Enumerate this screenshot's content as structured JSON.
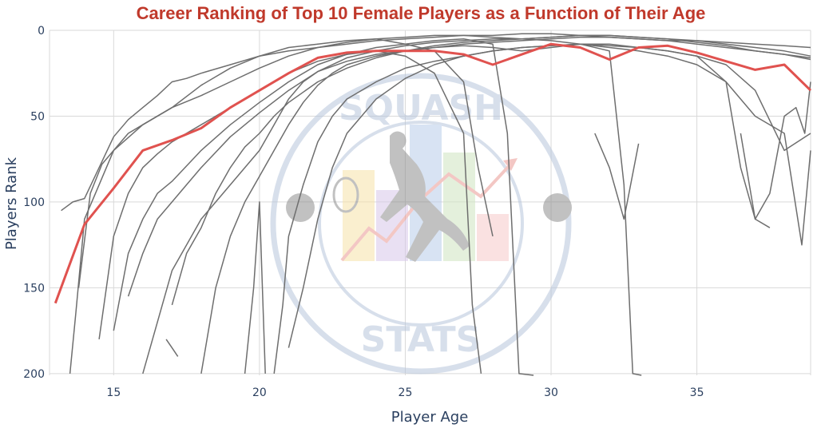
{
  "colors": {
    "title": "#c0392b",
    "player_line": "#6e6e6e",
    "average_line": "#e0524f",
    "grid": "#d9d9d9",
    "axis_text": "#2a3f5f",
    "watermark": "#b8c6dc"
  },
  "watermark": {
    "top_text": "SQUASH",
    "bottom_text": "STATS"
  },
  "chart_data": {
    "type": "line",
    "title": "Career Ranking of Top 10 Female Players as a Function of Their Age",
    "xlabel": "Player Age",
    "ylabel": "Players Rank",
    "xlim": [
      12.8,
      38.9
    ],
    "ylim": [
      0,
      201
    ],
    "y_reversed": true,
    "grid": true,
    "x_ticks": [
      15,
      20,
      25,
      30,
      35
    ],
    "y_ticks": [
      0,
      50,
      100,
      150,
      200
    ],
    "average": {
      "x": [
        13,
        14,
        15,
        16,
        17,
        18,
        19,
        20,
        21,
        22,
        23,
        24,
        25,
        26,
        27,
        28,
        29,
        30,
        31,
        32,
        33,
        34,
        35,
        36,
        37,
        38,
        38.9
      ],
      "y": [
        159,
        113,
        92,
        70,
        64,
        57,
        45,
        35,
        25,
        16,
        13,
        12,
        12,
        12,
        14,
        20,
        14,
        8,
        10,
        17,
        10,
        9,
        13,
        18,
        23,
        20,
        35
      ]
    },
    "players": [
      {
        "x": [
          13.2,
          13.6,
          14,
          14.5,
          15,
          15.5,
          16,
          16.5,
          17,
          17.5,
          18,
          19,
          20,
          21,
          22,
          23,
          24,
          25,
          26,
          27,
          28,
          29,
          30,
          31,
          32,
          33,
          34,
          35,
          36,
          37,
          38,
          38.9
        ],
        "y": [
          105,
          100,
          98,
          80,
          62,
          52,
          45,
          38,
          30,
          28,
          25,
          20,
          15,
          12,
          10,
          8,
          6,
          5,
          4,
          3,
          3,
          2,
          2,
          3,
          4,
          5,
          6,
          6,
          7,
          8,
          9,
          10
        ]
      },
      {
        "x": [
          13.5,
          13.7,
          14,
          14.5,
          15,
          16,
          17,
          18,
          19,
          20,
          21,
          22,
          23,
          24,
          25,
          26,
          27,
          27.5,
          28
        ],
        "y": [
          200,
          165,
          110,
          90,
          70,
          55,
          45,
          32,
          22,
          15,
          10,
          8,
          6,
          5,
          8,
          12,
          30,
          80,
          120
        ]
      },
      {
        "x": [
          13.8,
          14.2,
          14.6,
          15,
          15.5,
          16,
          17,
          18,
          19,
          20,
          21,
          22,
          23,
          24,
          25,
          26,
          27,
          28,
          29,
          30,
          31,
          32,
          33,
          34,
          35,
          36,
          37,
          38,
          38.9
        ],
        "y": [
          150,
          95,
          78,
          70,
          60,
          55,
          45,
          38,
          30,
          22,
          15,
          10,
          7,
          5,
          4,
          3,
          3,
          4,
          5,
          4,
          3,
          3,
          4,
          5,
          7,
          9,
          12,
          14,
          16
        ]
      },
      {
        "x": [
          14.5,
          15,
          15.5,
          16,
          16.5,
          17,
          18,
          19,
          20,
          21,
          22,
          23,
          24,
          25,
          26,
          27,
          27.3,
          27.6
        ],
        "y": [
          180,
          120,
          95,
          80,
          72,
          65,
          55,
          45,
          35,
          25,
          18,
          14,
          12,
          15,
          25,
          60,
          160,
          200
        ]
      },
      {
        "x": [
          15,
          15.5,
          16,
          16.5,
          17,
          18,
          19,
          20,
          21,
          22,
          23,
          24,
          25,
          26,
          27,
          28,
          28.5,
          28.9,
          29.4
        ],
        "y": [
          175,
          130,
          110,
          95,
          88,
          70,
          55,
          42,
          30,
          20,
          14,
          10,
          8,
          6,
          5,
          8,
          60,
          200,
          201
        ]
      },
      {
        "x": [
          15.5,
          16,
          16.5,
          17,
          17.5,
          18,
          19,
          20,
          21,
          22,
          23,
          24,
          25,
          26,
          27,
          28,
          29,
          30,
          31,
          32,
          32.5,
          32.8,
          33.1
        ],
        "y": [
          155,
          130,
          110,
          100,
          90,
          80,
          62,
          48,
          35,
          24,
          16,
          12,
          9,
          7,
          6,
          5,
          5,
          6,
          8,
          12,
          90,
          200,
          201
        ]
      },
      {
        "x": [
          16,
          16.5,
          17,
          17.5,
          18,
          19,
          20,
          20.5,
          21,
          21.5,
          22,
          23,
          24,
          25,
          26,
          27,
          28,
          29,
          30,
          31,
          32,
          33,
          34,
          35,
          36,
          36.5,
          37,
          37.5
        ],
        "y": [
          200,
          170,
          140,
          125,
          110,
          90,
          70,
          55,
          40,
          30,
          24,
          18,
          14,
          12,
          10,
          9,
          10,
          12,
          10,
          8,
          10,
          12,
          15,
          20,
          30,
          80,
          110,
          115
        ]
      },
      {
        "x": [
          16.8,
          17,
          17.2
        ],
        "y": [
          180,
          185,
          190
        ]
      },
      {
        "x": [
          17,
          17.5,
          18,
          18.5,
          19,
          19.5,
          20,
          20.5,
          21,
          22,
          23,
          24,
          25,
          26,
          27,
          28,
          29,
          30,
          31,
          32,
          33,
          34,
          35,
          36,
          37,
          38,
          38.9
        ],
        "y": [
          160,
          130,
          115,
          95,
          80,
          68,
          60,
          50,
          42,
          30,
          22,
          16,
          12,
          9,
          7,
          6,
          5,
          4,
          3,
          3,
          4,
          5,
          6,
          8,
          10,
          12,
          15
        ]
      },
      {
        "x": [
          18,
          18.5,
          19,
          19.5,
          20,
          20.5,
          21,
          21.5,
          22,
          22.5,
          23,
          24,
          25,
          26,
          27,
          28,
          29,
          30,
          31,
          32,
          33,
          34,
          35,
          36,
          37,
          38,
          38.9
        ],
        "y": [
          200,
          150,
          120,
          100,
          85,
          70,
          55,
          42,
          32,
          25,
          20,
          15,
          12,
          10,
          8,
          7,
          6,
          5,
          4,
          4,
          5,
          6,
          8,
          10,
          12,
          14,
          17
        ]
      },
      {
        "x": [
          19.5,
          19.8,
          20,
          20.2
        ],
        "y": [
          200,
          150,
          100,
          200
        ]
      },
      {
        "x": [
          20.5,
          20.8,
          21,
          21.5,
          22,
          22.5,
          23,
          24,
          25,
          26,
          27,
          28,
          29,
          30,
          31,
          32,
          33,
          34,
          35,
          36,
          37,
          38,
          38.9
        ],
        "y": [
          200,
          160,
          120,
          90,
          65,
          50,
          40,
          30,
          22,
          18,
          15,
          12,
          10,
          9,
          8,
          9,
          10,
          12,
          15,
          20,
          35,
          70,
          60
        ]
      },
      {
        "x": [
          21,
          21.5,
          22,
          22.5,
          23,
          24,
          25,
          26,
          27,
          28,
          29,
          30,
          31,
          32,
          33,
          34,
          35,
          36,
          37,
          38,
          38.6,
          38.9
        ],
        "y": [
          185,
          150,
          110,
          80,
          60,
          40,
          28,
          20,
          15,
          12,
          10,
          9,
          8,
          8,
          10,
          12,
          15,
          30,
          50,
          60,
          125,
          70
        ]
      },
      {
        "x": [
          31.5,
          32,
          32.5,
          33
        ],
        "y": [
          60,
          80,
          110,
          66
        ]
      },
      {
        "x": [
          36.5,
          37,
          37.5,
          38,
          38.4,
          38.7,
          38.9
        ],
        "y": [
          60,
          110,
          95,
          50,
          45,
          60,
          30
        ]
      }
    ]
  }
}
